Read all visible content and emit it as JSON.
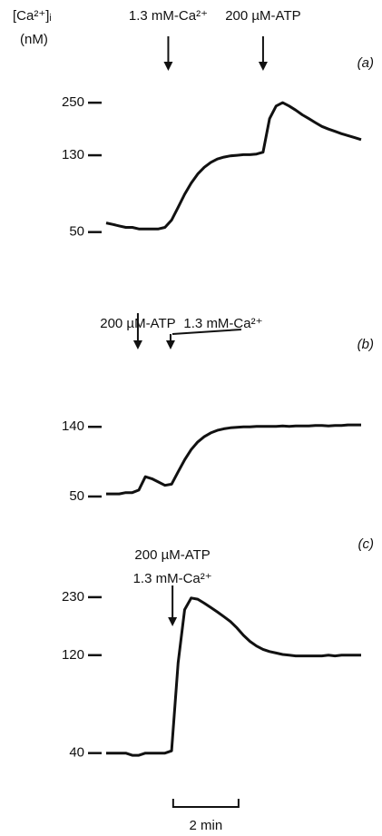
{
  "chart_data": [
    {
      "type": "line",
      "panel": "(a)",
      "y_label": [
        "[Ca²⁺]ᵢ",
        "(nM)"
      ],
      "log_scale": true,
      "color": "#111111",
      "xlim": [
        0,
        7.8
      ],
      "ylim": [
        45,
        290
      ],
      "yticks": [
        50,
        130,
        250
      ],
      "annotations": [
        {
          "x": 1.9,
          "text": [
            "1.3 mM-Ca²⁺"
          ]
        },
        {
          "x": 4.8,
          "text": [
            "200 µM-ATP"
          ]
        }
      ],
      "series": [
        {
          "x": [
            0,
            0.2,
            0.4,
            0.6,
            0.8,
            1.0,
            1.2,
            1.4,
            1.6,
            1.8,
            2.0,
            2.2,
            2.4,
            2.6,
            2.8,
            3.0,
            3.2,
            3.4,
            3.6,
            3.8,
            4.0,
            4.2,
            4.4,
            4.6,
            4.8,
            5.0,
            5.2,
            5.4,
            5.6,
            5.8,
            6.0,
            6.2,
            6.4,
            6.6,
            6.8,
            7.0,
            7.2,
            7.4,
            7.6,
            7.8
          ],
          "values": [
            56,
            55,
            54,
            53,
            53,
            52,
            52,
            52,
            52,
            53,
            58,
            68,
            80,
            92,
            103,
            112,
            119,
            124,
            127,
            129,
            130,
            131,
            131,
            132,
            135,
            205,
            240,
            250,
            240,
            228,
            215,
            205,
            195,
            186,
            180,
            175,
            170,
            166,
            162,
            158
          ]
        }
      ]
    },
    {
      "type": "line",
      "panel": "(b)",
      "log_scale": true,
      "color": "#111111",
      "xlim": [
        0,
        7.8
      ],
      "ylim": [
        42,
        210
      ],
      "yticks": [
        50,
        140
      ],
      "annotations": [
        {
          "x": 0.97,
          "text": [
            "200 µM-ATP"
          ]
        },
        {
          "x": 1.97,
          "text": [
            "1.3 mM-Ca²⁺"
          ]
        }
      ],
      "series": [
        {
          "x": [
            0,
            0.2,
            0.4,
            0.6,
            0.8,
            1.0,
            1.2,
            1.4,
            1.6,
            1.8,
            2.0,
            2.2,
            2.4,
            2.6,
            2.8,
            3.0,
            3.2,
            3.4,
            3.6,
            3.8,
            4.0,
            4.2,
            4.4,
            4.6,
            4.8,
            5.0,
            5.2,
            5.4,
            5.6,
            5.8,
            6.0,
            6.2,
            6.4,
            6.6,
            6.8,
            7.0,
            7.2,
            7.4,
            7.6,
            7.8
          ],
          "values": [
            52,
            52,
            52,
            53,
            53,
            55,
            67,
            65,
            62,
            59,
            60,
            72,
            86,
            100,
            112,
            121,
            128,
            133,
            136,
            138,
            139,
            140,
            140,
            141,
            141,
            141,
            141,
            142,
            141,
            142,
            142,
            142,
            143,
            143,
            142,
            143,
            143,
            144,
            144,
            144
          ]
        }
      ]
    },
    {
      "type": "line",
      "panel": "(c)",
      "log_scale": true,
      "color": "#111111",
      "xlim": [
        0,
        7.8
      ],
      "ylim": [
        36,
        276
      ],
      "yticks": [
        40,
        120,
        230
      ],
      "annotations": [
        {
          "x": 2.03,
          "text": [
            "200 µM-ATP",
            "1.3 mM-Ca²⁺"
          ]
        }
      ],
      "series": [
        {
          "x": [
            0,
            0.2,
            0.4,
            0.6,
            0.8,
            1.0,
            1.2,
            1.4,
            1.6,
            1.8,
            2.0,
            2.2,
            2.4,
            2.6,
            2.8,
            3.0,
            3.2,
            3.4,
            3.6,
            3.8,
            4.0,
            4.2,
            4.4,
            4.6,
            4.8,
            5.0,
            5.2,
            5.4,
            5.6,
            5.8,
            6.0,
            6.2,
            6.4,
            6.6,
            6.8,
            7.0,
            7.2,
            7.4,
            7.6,
            7.8
          ],
          "values": [
            40,
            40,
            40,
            40,
            39,
            39,
            40,
            40,
            40,
            40,
            41,
            110,
            200,
            228,
            225,
            215,
            205,
            195,
            185,
            175,
            163,
            150,
            140,
            133,
            128,
            125,
            123,
            121,
            120,
            119,
            119,
            119,
            119,
            119,
            120,
            119,
            120,
            120,
            120,
            120
          ]
        }
      ]
    }
  ],
  "scale_bar": {
    "value": 2,
    "label": "2 min"
  }
}
